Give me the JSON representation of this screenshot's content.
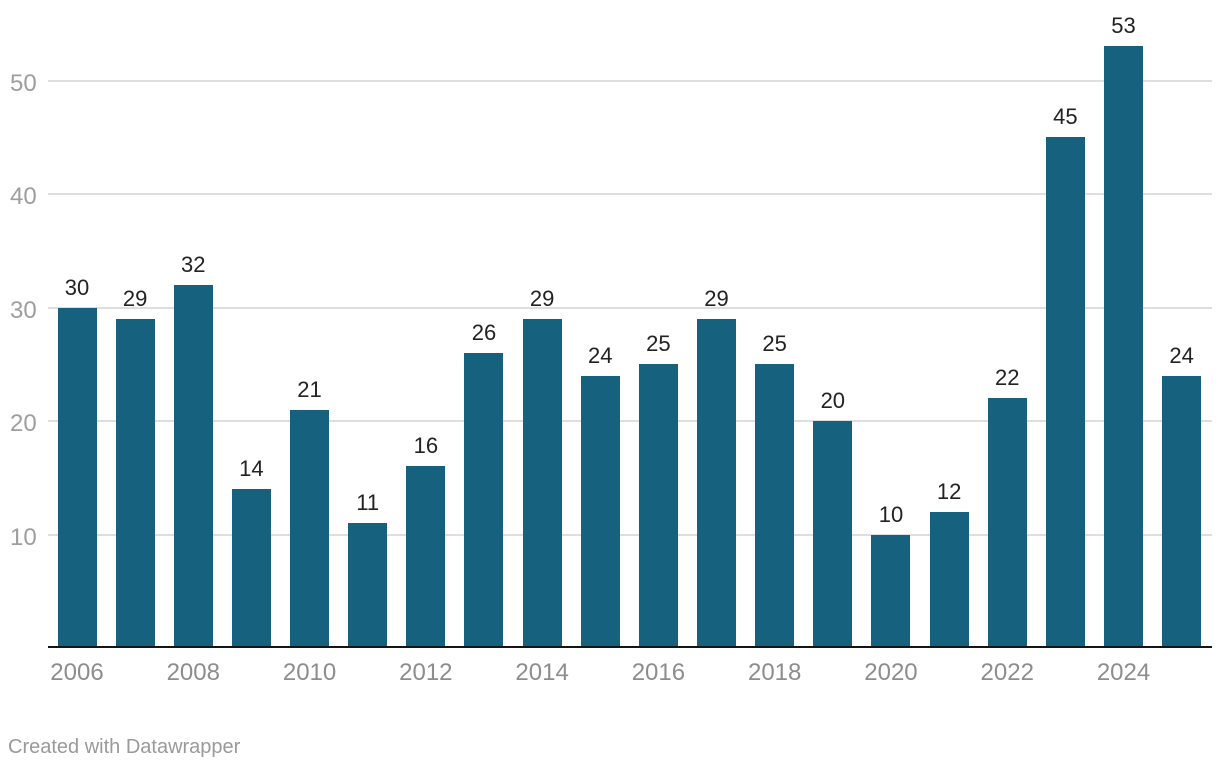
{
  "chart_data": {
    "type": "bar",
    "categories": [
      "2006",
      "2007",
      "2008",
      "2009",
      "2010",
      "2011",
      "2012",
      "2013",
      "2014",
      "2015",
      "2016",
      "2017",
      "2018",
      "2019",
      "2020",
      "2021",
      "2022",
      "2023",
      "2024",
      "2025"
    ],
    "values": [
      30,
      29,
      32,
      14,
      21,
      11,
      16,
      26,
      29,
      24,
      25,
      29,
      25,
      20,
      10,
      12,
      22,
      45,
      53,
      24
    ],
    "title": "",
    "xlabel": "",
    "ylabel": "",
    "ylim": [
      0,
      57
    ],
    "y_ticks": [
      10,
      20,
      30,
      40,
      50
    ],
    "x_tick_labels": [
      "2006",
      "2008",
      "2010",
      "2012",
      "2014",
      "2016",
      "2018",
      "2020",
      "2022",
      "2024"
    ],
    "grid": "horizontal",
    "legend_position": "none",
    "bar_color": "#16627e",
    "value_label_color": "#222222",
    "y_tick_color": "#9e9e9e",
    "x_tick_color": "#8d8d8d",
    "gridline_color": "#dedede",
    "axis_line_color": "#151515"
  },
  "footer": {
    "attribution": "Created with Datawrapper"
  }
}
